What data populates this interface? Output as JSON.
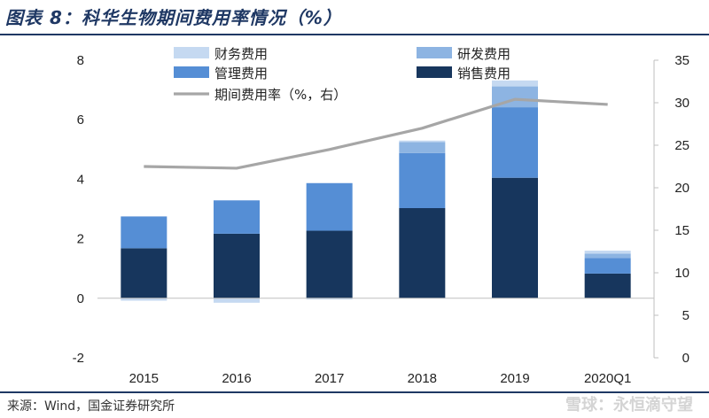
{
  "header": {
    "title": "图表 8：科华生物期间费用率情况（%）",
    "source": "来源：Wind，国金证券研究所",
    "watermark": "雪球：永恒滴守望"
  },
  "colors": {
    "finance": "#c5d9f1",
    "rd": "#8db4e2",
    "mgmt": "#558ed5",
    "sales": "#17365d",
    "ratio": "#a6a6a6",
    "rule": "#1f3864"
  },
  "chart_data": {
    "type": "bar",
    "stacked": true,
    "categories": [
      "2015",
      "2016",
      "2017",
      "2018",
      "2019",
      "2020Q1"
    ],
    "series": [
      {
        "name": "销售费用",
        "key": "sales",
        "values": [
          1.68,
          2.17,
          2.27,
          3.03,
          4.05,
          0.83
        ]
      },
      {
        "name": "管理费用",
        "key": "mgmt",
        "values": [
          1.07,
          1.12,
          1.6,
          1.85,
          2.37,
          0.52
        ]
      },
      {
        "name": "研发费用",
        "key": "rd",
        "values": [
          0.0,
          0.0,
          0.0,
          0.37,
          0.7,
          0.15
        ]
      },
      {
        "name": "财务费用",
        "key": "finance",
        "values": [
          -0.08,
          -0.15,
          -0.04,
          0.05,
          0.2,
          0.1
        ]
      }
    ],
    "line": {
      "name": "期间费用率（%，右）",
      "axis": "right",
      "values": [
        22.5,
        22.3,
        24.5,
        27,
        30.4,
        29.8
      ]
    },
    "legend": [
      "财务费用",
      "研发费用",
      "管理费用",
      "销售费用",
      "期间费用率（%，右）"
    ],
    "ylim_left": [
      -2,
      8
    ],
    "yticks_left": [
      -2,
      0,
      2,
      4,
      6,
      8
    ],
    "ylim_right": [
      0,
      35
    ],
    "yticks_right": [
      0,
      5,
      10,
      15,
      20,
      25,
      30,
      35
    ],
    "grid": false
  }
}
